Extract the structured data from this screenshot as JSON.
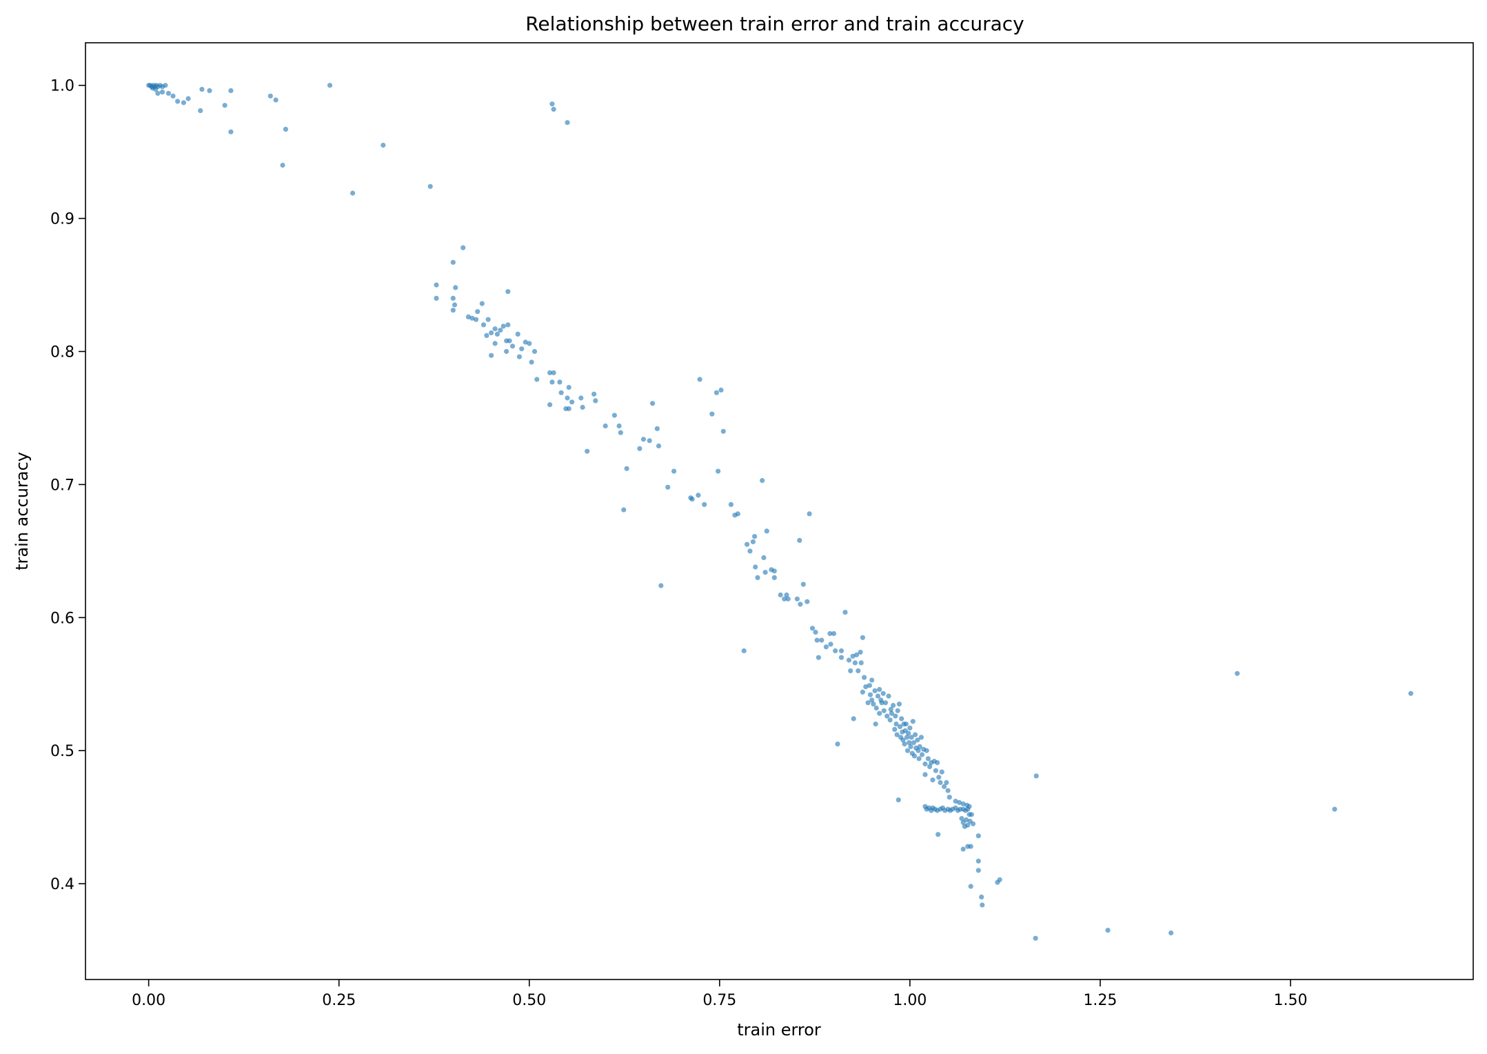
{
  "chart_data": {
    "type": "scatter",
    "title": "Relationship between train error and train accuracy",
    "xlabel": "train error",
    "ylabel": "train accuracy",
    "xlim": [
      -0.083,
      1.74
    ],
    "ylim": [
      0.328,
      1.032
    ],
    "xticks": [
      0.0,
      0.25,
      0.5,
      0.75,
      1.0,
      1.25,
      1.5
    ],
    "xtick_labels": [
      "0.00",
      "0.25",
      "0.50",
      "0.75",
      "1.00",
      "1.25",
      "1.50"
    ],
    "yticks": [
      0.4,
      0.5,
      0.6,
      0.7,
      0.8,
      0.9,
      1.0
    ],
    "ytick_labels": [
      "0.4",
      "0.5",
      "0.6",
      "0.7",
      "0.8",
      "0.9",
      "1.0"
    ],
    "grid": false,
    "marker_color": "#1f77b4",
    "marker_alpha": 0.6,
    "points": [
      [
        0.0,
        1.0
      ],
      [
        0.002,
        1.0
      ],
      [
        0.004,
        0.999
      ],
      [
        0.006,
        1.0
      ],
      [
        0.008,
        0.999
      ],
      [
        0.01,
        1.0
      ],
      [
        0.012,
        0.999
      ],
      [
        0.015,
        1.0
      ],
      [
        0.018,
        0.999
      ],
      [
        0.022,
        1.0
      ],
      [
        0.005,
        0.998
      ],
      [
        0.009,
        0.997
      ],
      [
        0.012,
        0.994
      ],
      [
        0.018,
        0.995
      ],
      [
        0.026,
        0.994
      ],
      [
        0.032,
        0.992
      ],
      [
        0.038,
        0.988
      ],
      [
        0.046,
        0.987
      ],
      [
        0.052,
        0.99
      ],
      [
        0.07,
        0.997
      ],
      [
        0.08,
        0.996
      ],
      [
        0.068,
        0.981
      ],
      [
        0.1,
        0.985
      ],
      [
        0.108,
        0.996
      ],
      [
        0.108,
        0.965
      ],
      [
        0.16,
        0.992
      ],
      [
        0.167,
        0.989
      ],
      [
        0.176,
        0.94
      ],
      [
        0.18,
        0.967
      ],
      [
        0.238,
        1.0
      ],
      [
        0.268,
        0.919
      ],
      [
        0.308,
        0.955
      ],
      [
        0.37,
        0.924
      ],
      [
        0.413,
        0.878
      ],
      [
        0.53,
        0.986
      ],
      [
        0.532,
        0.982
      ],
      [
        0.55,
        0.972
      ],
      [
        0.378,
        0.85
      ],
      [
        0.378,
        0.84
      ],
      [
        0.4,
        0.867
      ],
      [
        0.4,
        0.84
      ],
      [
        0.403,
        0.848
      ],
      [
        0.402,
        0.835
      ],
      [
        0.4,
        0.831
      ],
      [
        0.42,
        0.826
      ],
      [
        0.425,
        0.825
      ],
      [
        0.43,
        0.824
      ],
      [
        0.432,
        0.83
      ],
      [
        0.438,
        0.836
      ],
      [
        0.44,
        0.82
      ],
      [
        0.444,
        0.812
      ],
      [
        0.446,
        0.824
      ],
      [
        0.45,
        0.814
      ],
      [
        0.455,
        0.817
      ],
      [
        0.458,
        0.813
      ],
      [
        0.462,
        0.816
      ],
      [
        0.466,
        0.819
      ],
      [
        0.45,
        0.797
      ],
      [
        0.455,
        0.806
      ],
      [
        0.472,
        0.845
      ],
      [
        0.472,
        0.82
      ],
      [
        0.47,
        0.808
      ],
      [
        0.474,
        0.808
      ],
      [
        0.478,
        0.804
      ],
      [
        0.485,
        0.813
      ],
      [
        0.487,
        0.796
      ],
      [
        0.49,
        0.802
      ],
      [
        0.495,
        0.807
      ],
      [
        0.5,
        0.806
      ],
      [
        0.503,
        0.792
      ],
      [
        0.507,
        0.8
      ],
      [
        0.51,
        0.779
      ],
      [
        0.47,
        0.8
      ],
      [
        0.527,
        0.784
      ],
      [
        0.532,
        0.784
      ],
      [
        0.53,
        0.777
      ],
      [
        0.54,
        0.777
      ],
      [
        0.542,
        0.769
      ],
      [
        0.548,
        0.757
      ],
      [
        0.55,
        0.765
      ],
      [
        0.552,
        0.773
      ],
      [
        0.556,
        0.762
      ],
      [
        0.552,
        0.757
      ],
      [
        0.527,
        0.76
      ],
      [
        0.568,
        0.765
      ],
      [
        0.57,
        0.758
      ],
      [
        0.585,
        0.768
      ],
      [
        0.587,
        0.763
      ],
      [
        0.576,
        0.725
      ],
      [
        0.6,
        0.744
      ],
      [
        0.612,
        0.752
      ],
      [
        0.618,
        0.744
      ],
      [
        0.62,
        0.739
      ],
      [
        0.624,
        0.681
      ],
      [
        0.628,
        0.712
      ],
      [
        0.645,
        0.727
      ],
      [
        0.65,
        0.734
      ],
      [
        0.658,
        0.733
      ],
      [
        0.662,
        0.761
      ],
      [
        0.668,
        0.742
      ],
      [
        0.67,
        0.729
      ],
      [
        0.673,
        0.624
      ],
      [
        0.682,
        0.698
      ],
      [
        0.69,
        0.71
      ],
      [
        0.712,
        0.69
      ],
      [
        0.714,
        0.689
      ],
      [
        0.722,
        0.692
      ],
      [
        0.724,
        0.779
      ],
      [
        0.73,
        0.685
      ],
      [
        0.74,
        0.753
      ],
      [
        0.746,
        0.769
      ],
      [
        0.748,
        0.71
      ],
      [
        0.752,
        0.771
      ],
      [
        0.755,
        0.74
      ],
      [
        0.765,
        0.685
      ],
      [
        0.77,
        0.677
      ],
      [
        0.774,
        0.678
      ],
      [
        0.782,
        0.575
      ],
      [
        0.786,
        0.655
      ],
      [
        0.79,
        0.65
      ],
      [
        0.794,
        0.657
      ],
      [
        0.796,
        0.661
      ],
      [
        0.797,
        0.638
      ],
      [
        0.8,
        0.63
      ],
      [
        0.806,
        0.703
      ],
      [
        0.808,
        0.645
      ],
      [
        0.81,
        0.634
      ],
      [
        0.812,
        0.665
      ],
      [
        0.818,
        0.636
      ],
      [
        0.822,
        0.635
      ],
      [
        0.822,
        0.63
      ],
      [
        0.83,
        0.617
      ],
      [
        0.835,
        0.614
      ],
      [
        0.838,
        0.617
      ],
      [
        0.84,
        0.614
      ],
      [
        0.852,
        0.614
      ],
      [
        0.855,
        0.658
      ],
      [
        0.856,
        0.61
      ],
      [
        0.86,
        0.625
      ],
      [
        0.865,
        0.612
      ],
      [
        0.868,
        0.678
      ],
      [
        0.872,
        0.592
      ],
      [
        0.876,
        0.589
      ],
      [
        0.878,
        0.583
      ],
      [
        0.88,
        0.57
      ],
      [
        0.884,
        0.583
      ],
      [
        0.89,
        0.578
      ],
      [
        0.895,
        0.588
      ],
      [
        0.896,
        0.58
      ],
      [
        0.9,
        0.588
      ],
      [
        0.902,
        0.575
      ],
      [
        0.905,
        0.505
      ],
      [
        0.91,
        0.575
      ],
      [
        0.91,
        0.57
      ],
      [
        0.915,
        0.604
      ],
      [
        0.92,
        0.568
      ],
      [
        0.922,
        0.56
      ],
      [
        0.925,
        0.571
      ],
      [
        0.926,
        0.524
      ],
      [
        0.928,
        0.566
      ],
      [
        0.93,
        0.572
      ],
      [
        0.932,
        0.56
      ],
      [
        0.935,
        0.574
      ],
      [
        0.936,
        0.566
      ],
      [
        0.938,
        0.585
      ],
      [
        0.94,
        0.555
      ],
      [
        0.938,
        0.544
      ],
      [
        0.942,
        0.548
      ],
      [
        0.945,
        0.536
      ],
      [
        0.947,
        0.549
      ],
      [
        0.948,
        0.542
      ],
      [
        0.95,
        0.553
      ],
      [
        0.95,
        0.538
      ],
      [
        0.952,
        0.535
      ],
      [
        0.954,
        0.545
      ],
      [
        0.955,
        0.52
      ],
      [
        0.956,
        0.532
      ],
      [
        0.958,
        0.541
      ],
      [
        0.96,
        0.546
      ],
      [
        0.96,
        0.528
      ],
      [
        0.962,
        0.538
      ],
      [
        0.963,
        0.536
      ],
      [
        0.965,
        0.543
      ],
      [
        0.966,
        0.53
      ],
      [
        0.968,
        0.536
      ],
      [
        0.97,
        0.526
      ],
      [
        0.972,
        0.541
      ],
      [
        0.974,
        0.523
      ],
      [
        0.975,
        0.531
      ],
      [
        0.976,
        0.528
      ],
      [
        0.978,
        0.534
      ],
      [
        0.98,
        0.516
      ],
      [
        0.981,
        0.526
      ],
      [
        0.982,
        0.52
      ],
      [
        0.983,
        0.512
      ],
      [
        0.984,
        0.53
      ],
      [
        0.986,
        0.535
      ],
      [
        0.987,
        0.518
      ],
      [
        0.988,
        0.51
      ],
      [
        0.989,
        0.524
      ],
      [
        0.99,
        0.514
      ],
      [
        0.991,
        0.508
      ],
      [
        0.992,
        0.52
      ],
      [
        0.993,
        0.505
      ],
      [
        0.994,
        0.515
      ],
      [
        0.995,
        0.52
      ],
      [
        0.996,
        0.51
      ],
      [
        0.997,
        0.5
      ],
      [
        0.998,
        0.513
      ],
      [
        0.999,
        0.506
      ],
      [
        1.0,
        0.517
      ],
      [
        1.001,
        0.503
      ],
      [
        1.002,
        0.51
      ],
      [
        1.003,
        0.498
      ],
      [
        1.004,
        0.522
      ],
      [
        1.005,
        0.506
      ],
      [
        1.006,
        0.496
      ],
      [
        1.007,
        0.512
      ],
      [
        1.008,
        0.502
      ],
      [
        1.01,
        0.508
      ],
      [
        1.011,
        0.5
      ],
      [
        1.012,
        0.494
      ],
      [
        1.013,
        0.503
      ],
      [
        1.015,
        0.51
      ],
      [
        1.016,
        0.497
      ],
      [
        1.018,
        0.501
      ],
      [
        1.02,
        0.49
      ],
      [
        1.02,
        0.482
      ],
      [
        1.022,
        0.5
      ],
      [
        1.024,
        0.494
      ],
      [
        1.026,
        0.488
      ],
      [
        1.028,
        0.491
      ],
      [
        1.03,
        0.478
      ],
      [
        1.032,
        0.492
      ],
      [
        1.034,
        0.485
      ],
      [
        1.036,
        0.491
      ],
      [
        1.038,
        0.48
      ],
      [
        1.04,
        0.476
      ],
      [
        1.042,
        0.484
      ],
      [
        1.045,
        0.473
      ],
      [
        1.048,
        0.476
      ],
      [
        1.05,
        0.47
      ],
      [
        1.052,
        0.465
      ],
      [
        1.037,
        0.437
      ],
      [
        0.985,
        0.463
      ],
      [
        1.02,
        0.458
      ],
      [
        1.022,
        0.456
      ],
      [
        1.025,
        0.457
      ],
      [
        1.028,
        0.455
      ],
      [
        1.03,
        0.457
      ],
      [
        1.033,
        0.456
      ],
      [
        1.036,
        0.455
      ],
      [
        1.04,
        0.456
      ],
      [
        1.043,
        0.457
      ],
      [
        1.046,
        0.455
      ],
      [
        1.05,
        0.456
      ],
      [
        1.053,
        0.455
      ],
      [
        1.056,
        0.456
      ],
      [
        1.06,
        0.457
      ],
      [
        1.063,
        0.455
      ],
      [
        1.066,
        0.456
      ],
      [
        1.07,
        0.456
      ],
      [
        1.073,
        0.455
      ],
      [
        1.076,
        0.456
      ],
      [
        1.078,
        0.458
      ],
      [
        1.06,
        0.462
      ],
      [
        1.065,
        0.461
      ],
      [
        1.07,
        0.46
      ],
      [
        1.075,
        0.459
      ],
      [
        1.078,
        0.452
      ],
      [
        1.068,
        0.449
      ],
      [
        1.07,
        0.446
      ],
      [
        1.072,
        0.443
      ],
      [
        1.074,
        0.448
      ],
      [
        1.076,
        0.444
      ],
      [
        1.079,
        0.447
      ],
      [
        1.081,
        0.452
      ],
      [
        1.083,
        0.445
      ],
      [
        1.07,
        0.426
      ],
      [
        1.076,
        0.428
      ],
      [
        1.08,
        0.428
      ],
      [
        1.09,
        0.436
      ],
      [
        1.09,
        0.41
      ],
      [
        1.09,
        0.417
      ],
      [
        1.08,
        0.398
      ],
      [
        1.094,
        0.39
      ],
      [
        1.095,
        0.384
      ],
      [
        1.115,
        0.401
      ],
      [
        1.118,
        0.403
      ],
      [
        1.166,
        0.481
      ],
      [
        1.165,
        0.359
      ],
      [
        1.26,
        0.365
      ],
      [
        1.343,
        0.363
      ],
      [
        1.43,
        0.558
      ],
      [
        1.558,
        0.456
      ],
      [
        1.658,
        0.543
      ]
    ]
  }
}
